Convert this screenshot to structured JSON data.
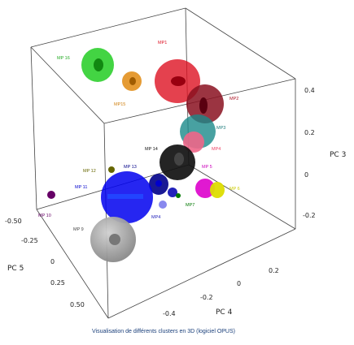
{
  "chart_data": {
    "type": "scatter3d",
    "caption": "Visualisation de différents clusters en 3D (logiciel OPUS)",
    "axes": {
      "pc3": {
        "label": "PC 3",
        "ticks": [
          "0.4",
          "0.2",
          "0",
          "-0.2"
        ]
      },
      "pc4": {
        "label": "PC 4",
        "ticks": [
          "-0.4",
          "-0.2",
          "0",
          "0.2"
        ]
      },
      "pc5": {
        "label": "PC 5",
        "ticks": [
          "-0.50",
          "-0.25",
          "0",
          "0.25",
          "0.50"
        ]
      }
    },
    "clusters": [
      {
        "name": "MP 16",
        "color": "#22cc22"
      },
      {
        "name": "MP15",
        "color": "#e08a10"
      },
      {
        "name": "MP1",
        "color": "#dd1122"
      },
      {
        "name": "MP2",
        "color": "#8a1020"
      },
      {
        "name": "MP3",
        "color": "#1a8a8a"
      },
      {
        "name": "MP4",
        "color": "#ee4466"
      },
      {
        "name": "MP 14",
        "color": "#111111"
      },
      {
        "name": "MP 5",
        "color": "#dd00cc"
      },
      {
        "name": "MP 6",
        "color": "#dddd00"
      },
      {
        "name": "MP 12",
        "color": "#666600"
      },
      {
        "name": "MP 13",
        "color": "#000088"
      },
      {
        "name": "MP 11",
        "color": "#0000ee"
      },
      {
        "name": "MP 10",
        "color": "#660066"
      },
      {
        "name": "MP4",
        "color": "#2222bb"
      },
      {
        "name": "MP7",
        "color": "#007700"
      },
      {
        "name": "MP 9",
        "color": "#888888"
      }
    ]
  }
}
